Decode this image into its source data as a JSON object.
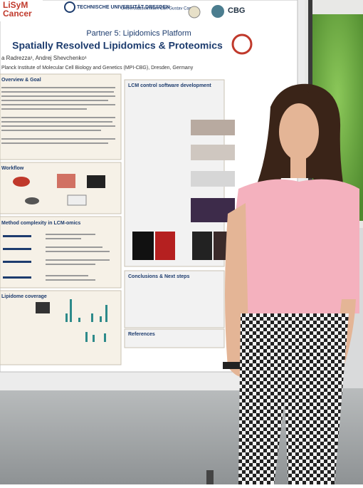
{
  "poster": {
    "logos": [
      "LiSyM",
      "Cancer",
      "TECHNISCHE UNIVERSITÄT DRESDEN",
      "Universitätsklinikum Carl Gustav Carus",
      "CBG"
    ],
    "subtitle": "Partner 5: Lipidomics Platform",
    "title": "Spatially Resolved Lipidomics & Proteomics",
    "authors": "a Radrezza¹, Andrej Shevchenko¹",
    "affiliation": "Planck Institute of Molecular Cell Biology and Genetics (MPI-CBG), Dresden, Germany",
    "sections": [
      "Overview & Goal",
      "Workflow",
      "Method complexity in LCM-omics",
      "Lipidome coverage",
      "LCM control software development",
      "Conclusions & Next steps",
      "References"
    ]
  }
}
